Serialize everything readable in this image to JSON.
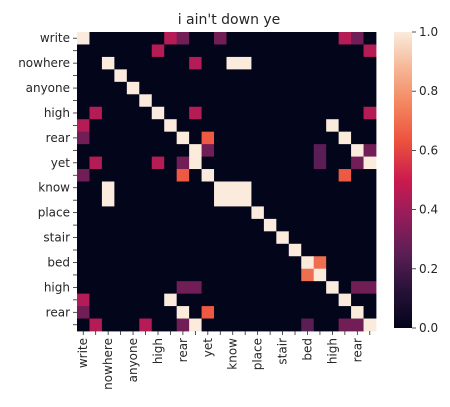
{
  "chart_data": {
    "type": "heatmap",
    "title": "i ain't down ye",
    "xlabel": "",
    "ylabel": "",
    "row_labels": [
      "write",
      "",
      "nowhere",
      "",
      "anyone",
      "",
      "high",
      "",
      "rear",
      "",
      "yet",
      "",
      "know",
      "",
      "place",
      "",
      "stair",
      "",
      "bed",
      "",
      "high",
      "",
      "rear",
      ""
    ],
    "col_labels": [
      "write",
      "",
      "nowhere",
      "",
      "anyone",
      "",
      "high",
      "",
      "rear",
      "",
      "yet",
      "",
      "know",
      "",
      "place",
      "",
      "stair",
      "",
      "bed",
      "",
      "high",
      "",
      "rear",
      ""
    ],
    "colorbar": {
      "min": 0.0,
      "max": 1.0,
      "ticks": [
        "0.0",
        "0.2",
        "0.4",
        "0.6",
        "0.8",
        "1.0"
      ]
    },
    "colormap": "rocket",
    "values": [
      [
        1,
        0,
        0,
        0,
        0,
        0,
        0,
        0.45,
        0.3,
        0,
        0,
        0.3,
        0,
        0,
        0,
        0,
        0,
        0,
        0,
        0,
        0,
        0.45,
        0.3,
        0
      ],
      [
        0,
        0,
        0,
        0,
        0,
        0,
        0.45,
        0,
        0,
        0,
        0,
        0,
        0,
        0,
        0,
        0,
        0,
        0,
        0,
        0,
        0,
        0,
        0,
        0.45
      ],
      [
        0,
        0,
        1,
        0,
        0,
        0,
        0,
        0,
        0,
        0.45,
        0,
        0,
        1,
        1,
        0,
        0,
        0,
        0,
        0,
        0,
        0,
        0,
        0,
        0
      ],
      [
        0,
        0,
        0,
        1,
        0,
        0,
        0,
        0,
        0,
        0,
        0,
        0,
        0,
        0,
        0,
        0,
        0,
        0,
        0,
        0,
        0,
        0,
        0,
        0
      ],
      [
        0,
        0,
        0,
        0,
        1,
        0,
        0,
        0,
        0,
        0,
        0,
        0,
        0,
        0,
        0,
        0,
        0,
        0,
        0,
        0,
        0,
        0,
        0,
        0
      ],
      [
        0,
        0,
        0,
        0,
        0,
        1,
        0,
        0,
        0,
        0,
        0,
        0,
        0,
        0,
        0,
        0,
        0,
        0,
        0,
        0,
        0,
        0,
        0,
        0
      ],
      [
        0,
        0.45,
        0,
        0,
        0,
        0,
        1,
        0,
        0,
        0.45,
        0,
        0,
        0,
        0,
        0,
        0,
        0,
        0,
        0,
        0,
        0,
        0,
        0,
        0.45
      ],
      [
        0.45,
        0,
        0,
        0,
        0,
        0,
        0,
        1,
        0,
        0,
        0,
        0,
        0,
        0,
        0,
        0,
        0,
        0,
        0,
        0,
        1,
        0,
        0,
        0
      ],
      [
        0.3,
        0,
        0,
        0,
        0,
        0,
        0,
        0,
        1,
        0,
        0.65,
        0,
        0,
        0,
        0,
        0,
        0,
        0,
        0,
        0,
        0,
        1,
        0,
        0
      ],
      [
        0,
        0,
        0,
        0,
        0,
        0,
        0,
        0,
        0,
        1,
        0.3,
        0,
        0,
        0,
        0,
        0,
        0,
        0,
        0,
        0.25,
        0,
        0,
        1,
        0.3
      ],
      [
        0,
        0.45,
        0,
        0,
        0,
        0,
        0.45,
        0,
        0.3,
        1,
        0,
        0,
        0,
        0,
        0,
        0,
        0,
        0,
        0,
        0.25,
        0,
        0,
        0.3,
        1
      ],
      [
        0.3,
        0,
        0,
        0,
        0,
        0,
        0,
        0,
        0.65,
        0,
        1,
        0,
        0,
        0,
        0,
        0,
        0,
        0,
        0,
        0,
        0,
        0.65,
        0,
        0
      ],
      [
        0,
        0,
        1,
        0,
        0,
        0,
        0,
        0,
        0,
        0,
        0,
        1,
        1,
        1,
        0,
        0,
        0,
        0,
        0,
        0,
        0,
        0,
        0,
        0
      ],
      [
        0,
        0,
        1,
        0,
        0,
        0,
        0,
        0,
        0,
        0,
        0,
        1,
        1,
        1,
        0,
        0,
        0,
        0,
        0,
        0,
        0,
        0,
        0,
        0
      ],
      [
        0,
        0,
        0,
        0,
        0,
        0,
        0,
        0,
        0,
        0,
        0,
        0,
        0,
        0,
        1,
        0,
        0,
        0,
        0,
        0,
        0,
        0,
        0,
        0
      ],
      [
        0,
        0,
        0,
        0,
        0,
        0,
        0,
        0,
        0,
        0,
        0,
        0,
        0,
        0,
        0,
        1,
        0,
        0,
        0,
        0,
        0,
        0,
        0,
        0
      ],
      [
        0,
        0,
        0,
        0,
        0,
        0,
        0,
        0,
        0,
        0,
        0,
        0,
        0,
        0,
        0,
        0,
        1,
        0,
        0,
        0,
        0,
        0,
        0,
        0
      ],
      [
        0,
        0,
        0,
        0,
        0,
        0,
        0,
        0,
        0,
        0,
        0,
        0,
        0,
        0,
        0,
        0,
        0,
        1,
        0,
        0,
        0,
        0,
        0,
        0
      ],
      [
        0,
        0,
        0,
        0,
        0,
        0,
        0,
        0,
        0,
        0,
        0,
        0,
        0,
        0,
        0,
        0,
        0,
        0,
        1,
        0.7,
        0,
        0,
        0,
        0
      ],
      [
        0,
        0,
        0,
        0,
        0,
        0,
        0,
        0,
        0,
        0,
        0,
        0,
        0,
        0,
        0,
        0,
        0,
        0,
        0.7,
        1,
        0,
        0,
        0,
        0
      ],
      [
        0,
        0,
        0,
        0,
        0,
        0,
        0,
        0,
        0.3,
        0.3,
        0,
        0,
        0,
        0,
        0,
        0,
        0,
        0,
        0,
        0,
        1,
        0,
        0.3,
        0.3
      ],
      [
        0.45,
        0,
        0,
        0,
        0,
        0,
        0,
        1,
        0,
        0,
        0,
        0,
        0,
        0,
        0,
        0,
        0,
        0,
        0,
        0,
        0,
        1,
        0,
        0
      ],
      [
        0.3,
        0,
        0,
        0,
        0,
        0,
        0,
        0,
        1,
        0,
        0.65,
        0,
        0,
        0,
        0,
        0,
        0,
        0,
        0,
        0,
        0,
        0,
        1,
        0
      ],
      [
        0,
        0.45,
        0,
        0,
        0,
        0.45,
        0,
        0,
        0.3,
        1,
        0,
        0,
        0,
        0,
        0,
        0,
        0,
        0,
        0.25,
        0,
        0,
        0.3,
        0.3,
        1
      ]
    ]
  }
}
